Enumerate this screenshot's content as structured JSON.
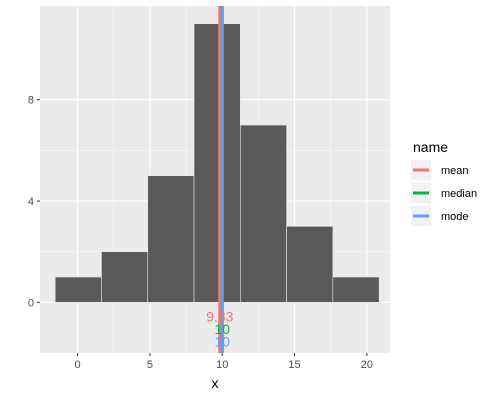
{
  "chart_data": {
    "type": "bar",
    "subtype": "histogram",
    "xlabel": "x",
    "ylabel": "",
    "xlim": [
      -2.6,
      21.6
    ],
    "ylim": [
      -2.0,
      11.7
    ],
    "x_ticks": [
      0,
      5,
      10,
      15,
      20
    ],
    "y_ticks": [
      0,
      4,
      8
    ],
    "bins": [
      {
        "x0": -1.55,
        "x1": 1.65,
        "count": 1
      },
      {
        "x0": 1.65,
        "x1": 4.85,
        "count": 2
      },
      {
        "x0": 4.85,
        "x1": 8.05,
        "count": 5
      },
      {
        "x0": 8.05,
        "x1": 11.25,
        "count": 11
      },
      {
        "x0": 11.25,
        "x1": 14.45,
        "count": 7
      },
      {
        "x0": 14.45,
        "x1": 17.65,
        "count": 3
      },
      {
        "x0": 17.65,
        "x1": 20.85,
        "count": 1
      }
    ],
    "vlines": [
      {
        "name": "mean",
        "value": 9.83,
        "label": "9.83",
        "color": "#F8766D"
      },
      {
        "name": "median",
        "value": 10,
        "label": "10",
        "color": "#00BA38"
      },
      {
        "name": "mode",
        "value": 10,
        "label": "10",
        "color": "#619CFF"
      }
    ],
    "legend": {
      "title": "name",
      "position": "right",
      "items": [
        {
          "label": "mean",
          "color": "#F8766D"
        },
        {
          "label": "median",
          "color": "#00BA38"
        },
        {
          "label": "mode",
          "color": "#619CFF"
        }
      ]
    },
    "grid": true,
    "bar_fill": "#595959",
    "bar_outline": "#e6e6e6",
    "panel_background": "#ebebeb"
  }
}
